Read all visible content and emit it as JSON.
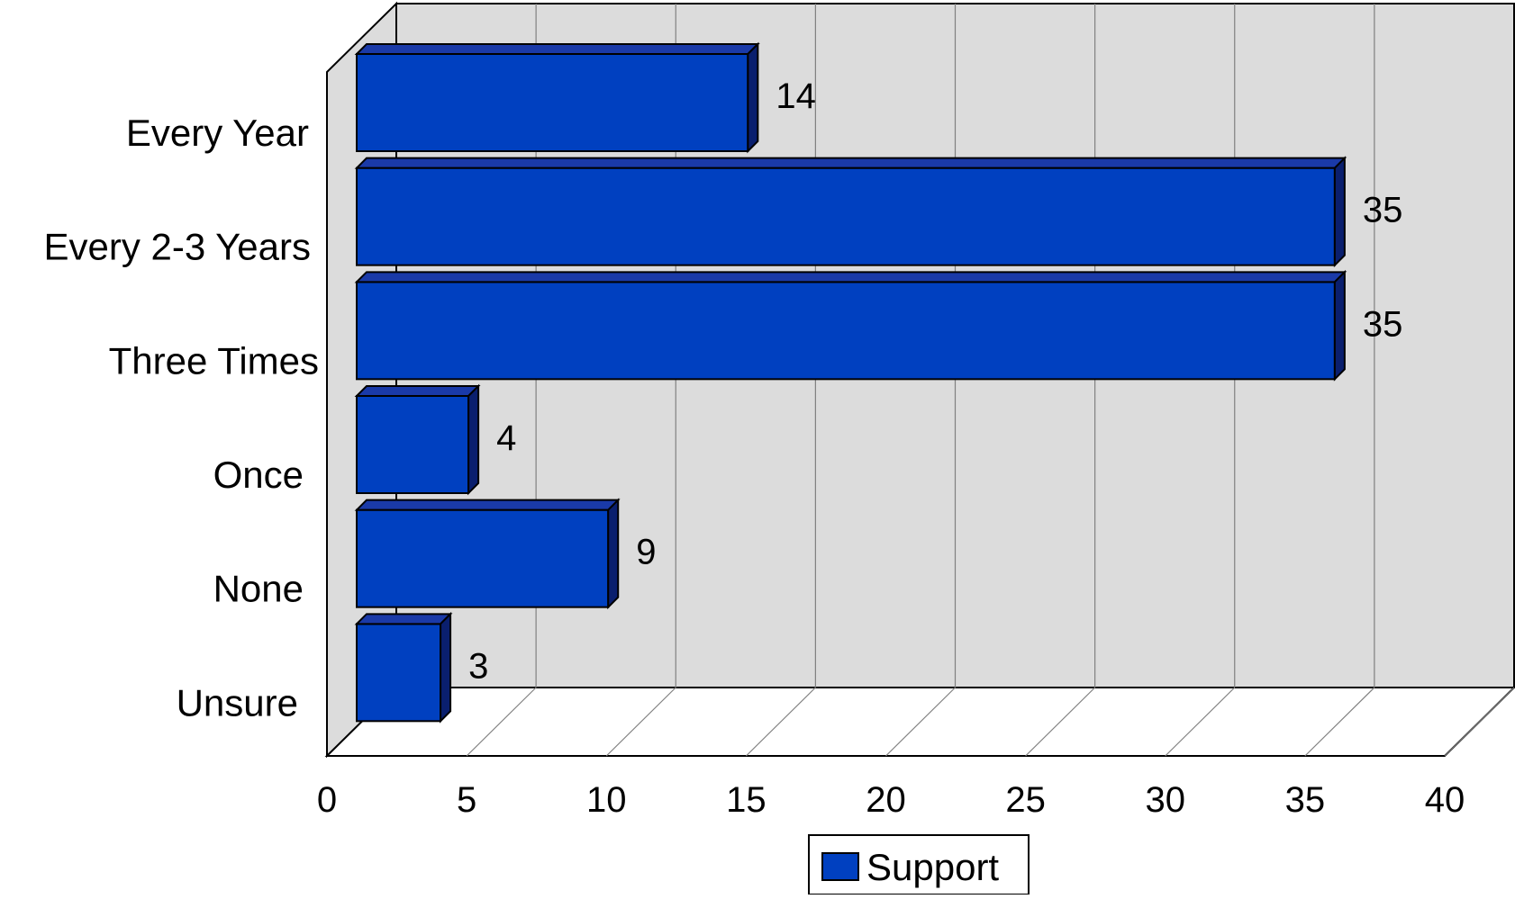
{
  "chart_data": {
    "type": "bar",
    "orientation": "horizontal",
    "style": "3d",
    "categories": [
      "Every Year",
      "Every 2-3 Years",
      "Three Times",
      "Once",
      "None",
      "Unsure"
    ],
    "series": [
      {
        "name": "Support",
        "values": [
          14,
          35,
          35,
          4,
          9,
          3
        ],
        "color": "#0040C0"
      }
    ],
    "data_labels": [
      "14",
      "35",
      "35",
      "4",
      "9",
      "3"
    ],
    "x_ticks": [
      0,
      5,
      10,
      15,
      20,
      25,
      30,
      35,
      40
    ],
    "x_tick_labels": [
      "0",
      "5",
      "10",
      "15",
      "20",
      "25",
      "30",
      "35",
      "40"
    ],
    "xlim": [
      0,
      40
    ],
    "title": "",
    "xlabel": "",
    "ylabel": "",
    "grid": "vertical",
    "legend": {
      "position": "bottom",
      "entries": [
        "Support"
      ]
    },
    "colors": {
      "bar_front": "#0040C0",
      "bar_top": "#1A3AA8",
      "bar_side": "#0A1F6E",
      "wall": "#DCDCDC",
      "floor": "#FFFFFF",
      "gridline": "#808080"
    }
  }
}
